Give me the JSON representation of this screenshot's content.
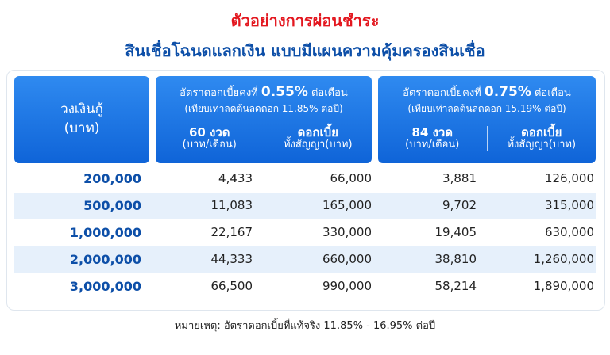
{
  "header": {
    "title_line1": "ตัวอย่างการผ่อนชำระ",
    "title_line2": "สินเชื่อโฉนดแลกเงิน แบบมีแผนความคุ้มครองสินเชื่อ"
  },
  "table": {
    "amount_header": [
      "วงเงินกู้",
      "(บาท)"
    ],
    "groups": [
      {
        "rate_prefix": "อัตราดอกเบี้ยคงที่ ",
        "rate": "0.55%",
        "rate_suffix": " ต่อเดือน",
        "equivalent": "(เทียบเท่าลดต้นลดดอก 11.85% ต่อปี)",
        "columns": [
          [
            "60 งวด",
            "(บาท/เดือน)"
          ],
          [
            "ดอกเบี้ย",
            "ทั้งสัญญา(บาท)"
          ]
        ]
      },
      {
        "rate_prefix": "อัตราดอกเบี้ยคงที่ ",
        "rate": "0.75%",
        "rate_suffix": " ต่อเดือน",
        "equivalent": "(เทียบเท่าลดต้นลดดอก 15.19% ต่อปี)",
        "columns": [
          [
            "84 งวด",
            "(บาท/เดือน)"
          ],
          [
            "ดอกเบี้ย",
            "ทั้งสัญญา(บาท)"
          ]
        ]
      }
    ],
    "rows": [
      [
        "200,000",
        "4,433",
        "66,000",
        "3,881",
        "126,000"
      ],
      [
        "500,000",
        "11,083",
        "165,000",
        "9,702",
        "315,000"
      ],
      [
        "1,000,000",
        "22,167",
        "330,000",
        "19,405",
        "630,000"
      ],
      [
        "2,000,000",
        "44,333",
        "660,000",
        "38,810",
        "1,260,000"
      ],
      [
        "3,000,000",
        "66,500",
        "990,000",
        "58,214",
        "1,890,000"
      ]
    ]
  },
  "footnote": "หมายเหตุ: อัตราดอกเบี้ยที่แท้จริง 11.85% - 16.95% ต่อปี"
}
